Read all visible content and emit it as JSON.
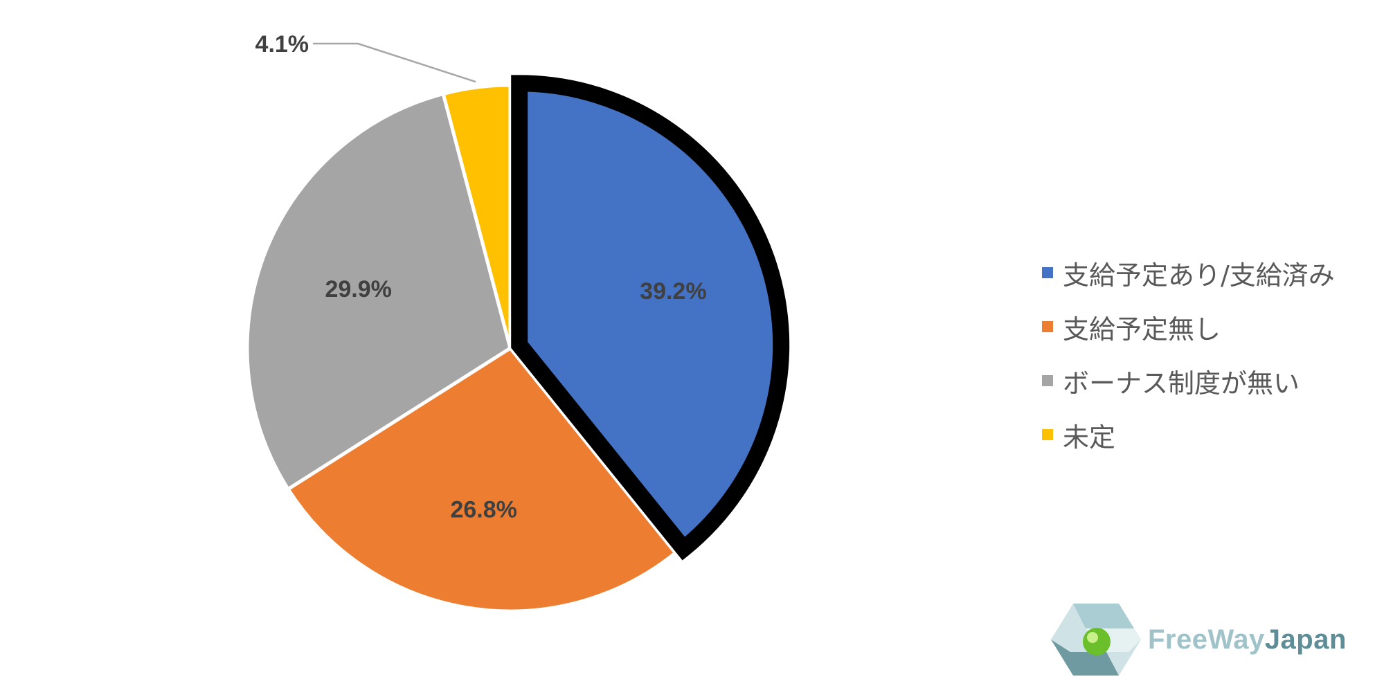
{
  "chart_data": {
    "type": "pie",
    "title": "",
    "slices": [
      {
        "name": "支給予定あり/支給済み",
        "value": 39.2,
        "label": "39.2%",
        "color": "#4472C4",
        "highlighted": true
      },
      {
        "name": "支給予定無し",
        "value": 26.8,
        "label": "26.8%",
        "color": "#ED7D31",
        "highlighted": false
      },
      {
        "name": "ボーナス制度が無い",
        "value": 29.9,
        "label": "29.9%",
        "color": "#A5A5A5",
        "highlighted": false
      },
      {
        "name": "未定",
        "value": 4.1,
        "label": "4.1%",
        "color": "#FFC000",
        "highlighted": false
      }
    ],
    "legend_position": "right",
    "start_angle": "12 o'clock",
    "direction": "clockwise"
  },
  "logo": {
    "text_part1": "FreeWay",
    "text_part2": "Japan"
  }
}
